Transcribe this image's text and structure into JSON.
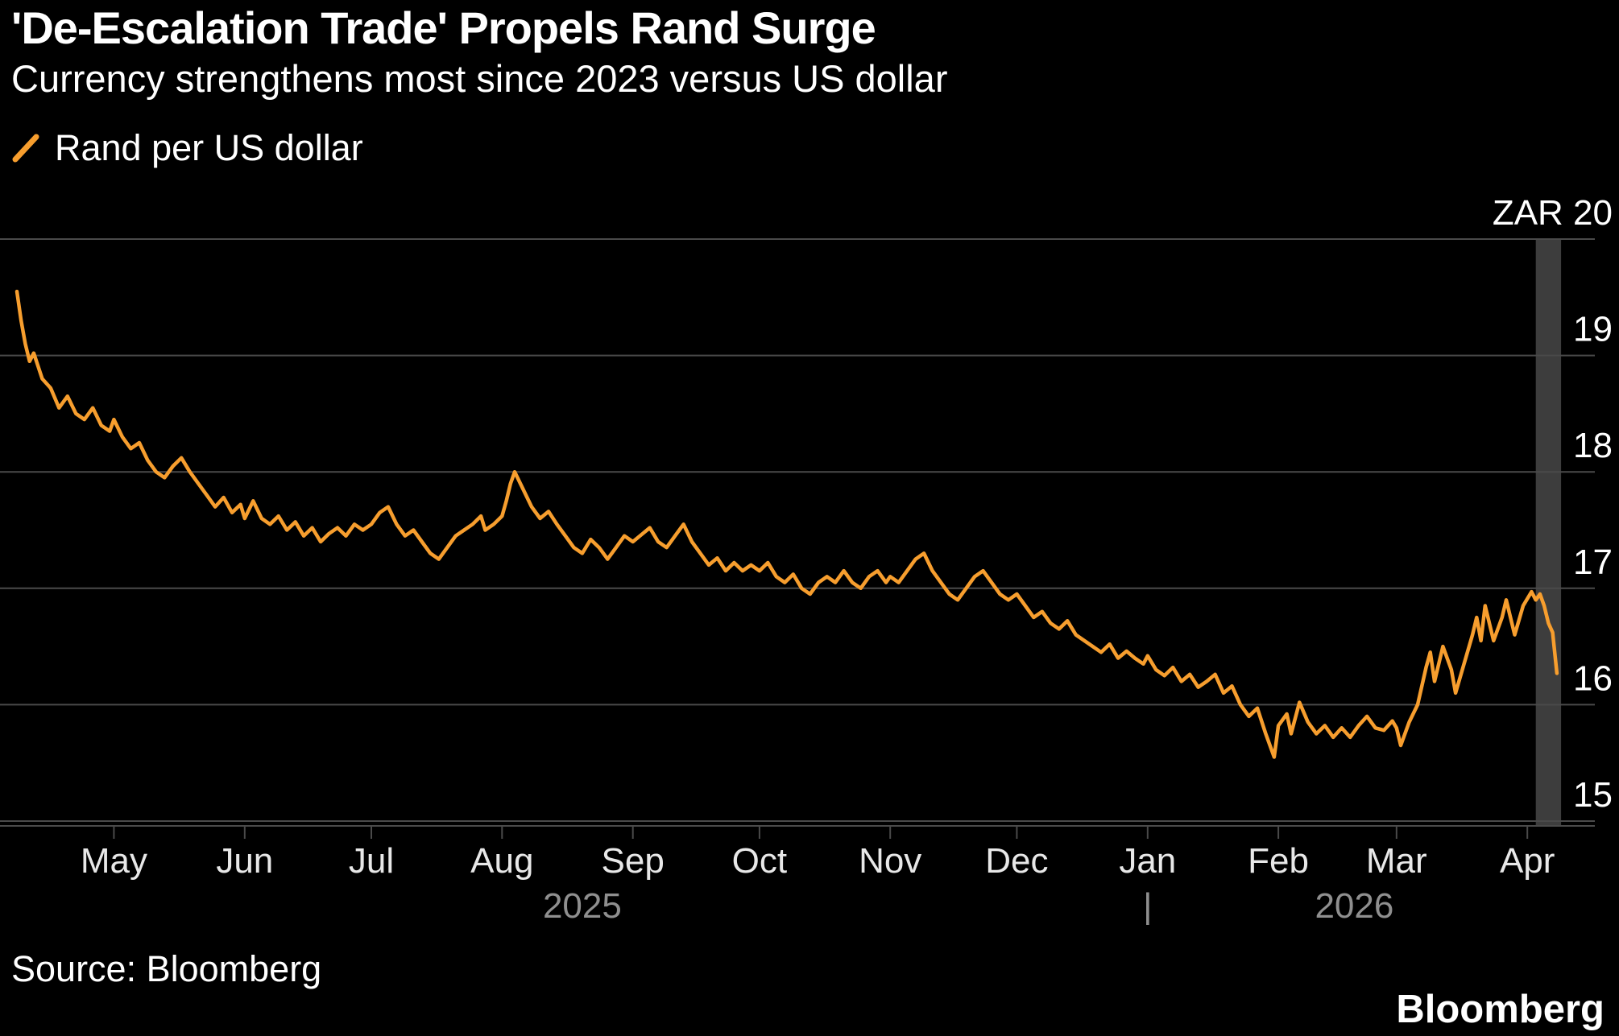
{
  "header": {
    "title": "'De-Escalation Trade' Propels Rand Surge",
    "subtitle": "Currency strengthens most since 2023 versus US dollar"
  },
  "legend": {
    "label": "Rand per US dollar"
  },
  "footer": {
    "source": "Source: Bloomberg",
    "brand": "Bloomberg"
  },
  "chart_data": {
    "type": "line",
    "title": "'De-Escalation Trade' Propels Rand Surge",
    "subtitle": "Currency strengthens most since 2023 versus US dollar",
    "y_axis_prefix": "ZAR",
    "yticks": [
      20,
      19,
      18,
      17,
      16,
      15
    ],
    "ylim": [
      14.95,
      20.05
    ],
    "grid": true,
    "legend_position": "top-left",
    "xticks": [
      "May",
      "Jun",
      "Jul",
      "Aug",
      "Sep",
      "Oct",
      "Nov",
      "Dec",
      "Jan",
      "Feb",
      "Mar",
      "Apr"
    ],
    "xtick_days": [
      27,
      58,
      88,
      119,
      150,
      180,
      211,
      241,
      272,
      303,
      331,
      362
    ],
    "x_domain": [
      0,
      378
    ],
    "year_markers": [
      {
        "label": "2025",
        "day": 138
      },
      {
        "label": "2026",
        "day": 321
      }
    ],
    "year_divider_day": 272,
    "highlight_band": {
      "from": 364,
      "to": 370
    },
    "colors": {
      "line": "#F79E2E",
      "band": "#3d3d3d",
      "grid": "#4a4a4a",
      "background": "#000000"
    },
    "series": [
      {
        "name": "Rand per US dollar",
        "x": [
          4,
          5,
          6,
          7,
          8,
          10,
          12,
          14,
          16,
          18,
          20,
          22,
          24,
          26,
          27,
          29,
          31,
          33,
          35,
          37,
          39,
          41,
          43,
          45,
          47,
          49,
          51,
          53,
          55,
          57,
          58,
          60,
          62,
          64,
          66,
          68,
          70,
          72,
          74,
          76,
          78,
          80,
          82,
          84,
          86,
          88,
          90,
          92,
          94,
          96,
          98,
          100,
          102,
          104,
          106,
          108,
          110,
          112,
          114,
          115,
          117,
          119,
          120,
          121,
          122,
          124,
          126,
          128,
          130,
          132,
          134,
          136,
          138,
          140,
          142,
          144,
          146,
          148,
          150,
          152,
          154,
          156,
          158,
          160,
          162,
          164,
          166,
          168,
          170,
          172,
          174,
          176,
          178,
          180,
          182,
          184,
          186,
          188,
          190,
          192,
          194,
          196,
          198,
          200,
          202,
          204,
          206,
          208,
          210,
          211,
          213,
          215,
          217,
          219,
          221,
          223,
          225,
          227,
          229,
          231,
          233,
          235,
          237,
          239,
          241,
          243,
          245,
          247,
          249,
          251,
          253,
          255,
          257,
          259,
          261,
          263,
          265,
          267,
          269,
          271,
          272,
          274,
          276,
          278,
          280,
          282,
          284,
          286,
          288,
          290,
          292,
          294,
          296,
          298,
          300,
          302,
          303,
          305,
          306,
          308,
          310,
          312,
          314,
          316,
          318,
          320,
          322,
          324,
          326,
          328,
          330,
          331,
          332,
          334,
          336,
          338,
          339,
          340,
          342,
          344,
          345,
          347,
          349,
          350,
          351,
          352,
          354,
          356,
          357,
          359,
          361,
          363,
          364,
          365,
          366,
          367,
          368,
          369
        ],
        "values": [
          19.55,
          19.3,
          19.1,
          18.95,
          19.02,
          18.8,
          18.72,
          18.55,
          18.65,
          18.5,
          18.45,
          18.55,
          18.4,
          18.35,
          18.45,
          18.3,
          18.2,
          18.25,
          18.1,
          18.0,
          17.95,
          18.05,
          18.12,
          18.0,
          17.9,
          17.8,
          17.7,
          17.78,
          17.65,
          17.72,
          17.6,
          17.75,
          17.6,
          17.55,
          17.62,
          17.5,
          17.57,
          17.45,
          17.52,
          17.4,
          17.47,
          17.52,
          17.45,
          17.55,
          17.5,
          17.55,
          17.65,
          17.7,
          17.55,
          17.45,
          17.5,
          17.4,
          17.3,
          17.25,
          17.35,
          17.45,
          17.5,
          17.55,
          17.62,
          17.5,
          17.55,
          17.62,
          17.75,
          17.9,
          18.0,
          17.85,
          17.7,
          17.6,
          17.66,
          17.55,
          17.45,
          17.35,
          17.3,
          17.42,
          17.35,
          17.25,
          17.35,
          17.45,
          17.4,
          17.46,
          17.52,
          17.4,
          17.35,
          17.45,
          17.55,
          17.4,
          17.3,
          17.2,
          17.26,
          17.15,
          17.22,
          17.15,
          17.2,
          17.15,
          17.22,
          17.1,
          17.05,
          17.12,
          17.0,
          16.95,
          17.05,
          17.1,
          17.05,
          17.15,
          17.05,
          17.0,
          17.1,
          17.15,
          17.05,
          17.1,
          17.05,
          17.15,
          17.25,
          17.3,
          17.15,
          17.05,
          16.95,
          16.9,
          17.0,
          17.1,
          17.15,
          17.05,
          16.95,
          16.9,
          16.95,
          16.85,
          16.75,
          16.8,
          16.7,
          16.65,
          16.72,
          16.6,
          16.55,
          16.5,
          16.45,
          16.52,
          16.4,
          16.46,
          16.4,
          16.35,
          16.42,
          16.3,
          16.25,
          16.32,
          16.2,
          16.26,
          16.15,
          16.2,
          16.26,
          16.1,
          16.16,
          16.0,
          15.9,
          15.97,
          15.75,
          15.55,
          15.82,
          15.92,
          15.75,
          16.02,
          15.85,
          15.75,
          15.82,
          15.72,
          15.8,
          15.72,
          15.82,
          15.9,
          15.8,
          15.78,
          15.86,
          15.8,
          15.65,
          15.85,
          16.0,
          16.32,
          16.45,
          16.2,
          16.5,
          16.3,
          16.1,
          16.35,
          16.6,
          16.75,
          16.55,
          16.85,
          16.55,
          16.75,
          16.9,
          16.6,
          16.85,
          16.97,
          16.9,
          16.95,
          16.85,
          16.7,
          16.62,
          16.27
        ]
      }
    ]
  }
}
